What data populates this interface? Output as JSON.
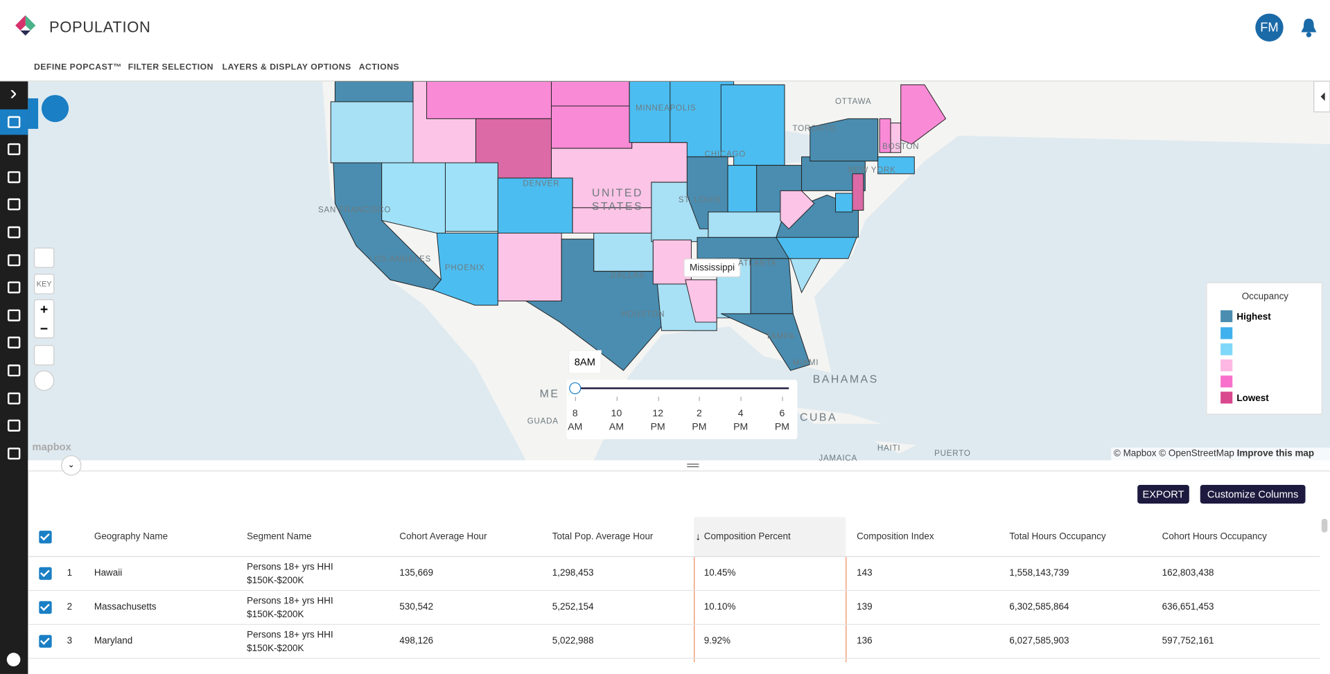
{
  "header": {
    "title": "POPULATION",
    "avatar": "FM"
  },
  "nav": [
    "DEFINE POPCAST™",
    "FILTER SELECTION",
    "LAYERS & DISPLAY OPTIONS",
    "ACTIONS"
  ],
  "map": {
    "labels": [
      "OTTAWA",
      "MINNEAPOLIS",
      "TORONTO",
      "CHICAGO",
      "BOSTON",
      "NEW YORK",
      "DENVER",
      "UNITED",
      "STATES",
      "SAN FRANCISCO",
      "ST. LOUIS",
      "LOS ANGELES",
      "PHOENIX",
      "DALLAS",
      "ATLANTA",
      "HOUSTON",
      "TAMPA",
      "MIAMI",
      "BAHAMAS",
      "ME",
      "CUBA",
      "GUADA",
      "HAITI",
      "PUERTO",
      "JAMAICA"
    ],
    "tooltip": "Mississippi",
    "key_button": "KEY",
    "logo": "mapbox",
    "time_slider": {
      "current": "8AM",
      "ticks": [
        {
          "hour": "8",
          "period": "AM"
        },
        {
          "hour": "10",
          "period": "AM"
        },
        {
          "hour": "12",
          "period": "PM"
        },
        {
          "hour": "2",
          "period": "PM"
        },
        {
          "hour": "4",
          "period": "PM"
        },
        {
          "hour": "6",
          "period": "PM"
        }
      ]
    },
    "legend": {
      "title": "Occupancy",
      "high": "Highest",
      "low": "Lowest"
    },
    "attribution": [
      "© Mapbox",
      "© OpenStreetMap",
      "Improve this map"
    ]
  },
  "table": {
    "buttons": [
      "EXPORT",
      "Customize Columns"
    ],
    "columns": [
      "Geography Name",
      "Segment Name",
      "Cohort Average Hour",
      "Total Pop. Average Hour",
      "Composition Percent",
      "Composition Index",
      "Total Hours Occupancy",
      "Cohort Hours Occupancy"
    ],
    "rows": [
      [
        "1",
        "Hawaii",
        "Persons 18+ yrs HHI $150K-$200K",
        "135,669",
        "1,298,453",
        "10.45%",
        "143",
        "1,558,143,739",
        "162,803,438"
      ],
      [
        "2",
        "Massachusetts",
        "Persons 18+ yrs HHI $150K-$200K",
        "530,542",
        "5,252,154",
        "10.10%",
        "139",
        "6,302,585,864",
        "636,651,453"
      ],
      [
        "3",
        "Maryland",
        "Persons 18+ yrs HHI $150K-$200K",
        "498,126",
        "5,022,988",
        "9.92%",
        "136",
        "6,027,585,903",
        "597,752,161"
      ]
    ]
  }
}
